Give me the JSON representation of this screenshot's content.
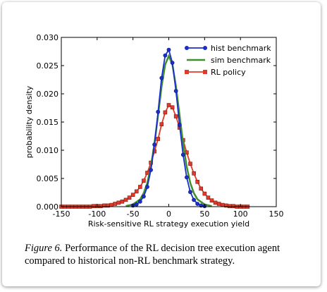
{
  "caption": {
    "lead": "Figure 6.",
    "text": " Performance of the RL decision tree execution agent compared to historical non-RL benchmark strategy."
  },
  "chart_data": {
    "type": "line",
    "xlabel": "Risk-sensitive RL strategy execution yield",
    "ylabel": "probability density",
    "xlim": [
      -150,
      150
    ],
    "ylim": [
      0,
      0.03
    ],
    "xticks": [
      "-150",
      "-100",
      "-50",
      "0",
      "50",
      "100",
      "150"
    ],
    "yticks": [
      "0.000",
      "0.005",
      "0.010",
      "0.015",
      "0.020",
      "0.025",
      "0.030"
    ],
    "grid": false,
    "legend_position": "top-right",
    "series": [
      {
        "name": "hist benchmark",
        "color": "#1a2ecc",
        "marker": "circle",
        "x": [
          -50,
          -45,
          -40,
          -35,
          -30,
          -25,
          -20,
          -15,
          -10,
          -5,
          0,
          5,
          10,
          15,
          20,
          25,
          30,
          35,
          40,
          45,
          50
        ],
        "y": [
          0.0002,
          0.0004,
          0.0009,
          0.0018,
          0.0035,
          0.0065,
          0.011,
          0.0168,
          0.0228,
          0.0268,
          0.0278,
          0.0255,
          0.0205,
          0.0145,
          0.0092,
          0.0052,
          0.0026,
          0.0012,
          0.0005,
          0.0002,
          0.0001
        ]
      },
      {
        "name": "sim benchmark",
        "color": "#3f8f2f",
        "marker": "none",
        "x": [
          -60,
          -50,
          -40,
          -35,
          -30,
          -25,
          -20,
          -15,
          -10,
          -5,
          0,
          5,
          10,
          15,
          20,
          25,
          30,
          35,
          40,
          50,
          60
        ],
        "y": [
          0.0001,
          0.0004,
          0.0013,
          0.0024,
          0.0042,
          0.0071,
          0.0112,
          0.0162,
          0.0213,
          0.0252,
          0.0267,
          0.0252,
          0.0213,
          0.0162,
          0.0112,
          0.0071,
          0.0042,
          0.0024,
          0.0013,
          0.0004,
          0.0001
        ]
      },
      {
        "name": "RL policy",
        "color": "#e03b2a",
        "marker": "square",
        "x": [
          -150,
          -145,
          -140,
          -135,
          -130,
          -125,
          -120,
          -115,
          -110,
          -105,
          -100,
          -95,
          -90,
          -85,
          -80,
          -75,
          -70,
          -65,
          -60,
          -55,
          -50,
          -45,
          -40,
          -35,
          -30,
          -25,
          -20,
          -15,
          -10,
          -5,
          0,
          5,
          10,
          15,
          20,
          25,
          30,
          35,
          40,
          45,
          50,
          55,
          60,
          65,
          70,
          75,
          80,
          85,
          90,
          95,
          100,
          105,
          110
        ],
        "y": [
          0.0,
          0.0,
          0.0,
          0.0,
          0.0,
          0.0,
          0.0,
          0.0,
          0.0,
          0.0001,
          0.0001,
          0.0001,
          0.0002,
          0.0002,
          0.0003,
          0.0005,
          0.0007,
          0.0009,
          0.0012,
          0.0016,
          0.0021,
          0.0027,
          0.0035,
          0.0046,
          0.006,
          0.0078,
          0.0098,
          0.012,
          0.0146,
          0.0167,
          0.018,
          0.0176,
          0.016,
          0.014,
          0.0118,
          0.0096,
          0.0076,
          0.0059,
          0.0044,
          0.0032,
          0.0023,
          0.0016,
          0.0011,
          0.0007,
          0.0005,
          0.0003,
          0.0002,
          0.0001,
          0.0001,
          0.0,
          0.0,
          0.0,
          0.0
        ]
      }
    ]
  }
}
